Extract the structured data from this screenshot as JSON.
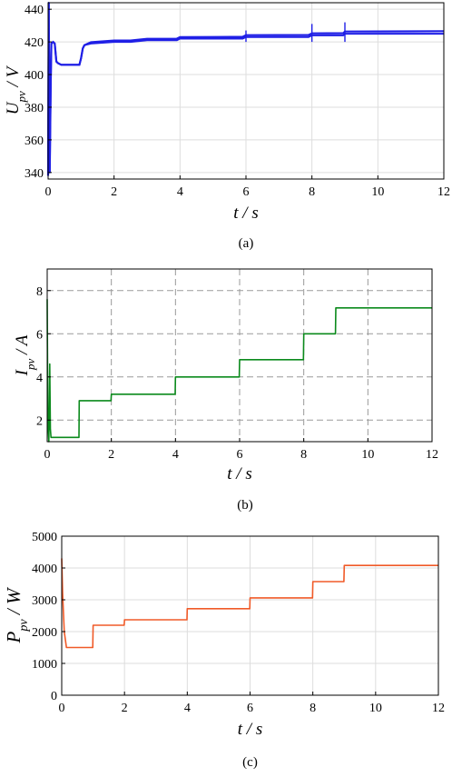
{
  "chart_data": [
    {
      "type": "line",
      "caption": "(a)",
      "xlabel": "t / s",
      "ylabel": {
        "base": "U",
        "sub": "pv",
        "rest": " / V"
      },
      "xlim": [
        0,
        12
      ],
      "ylim": [
        336,
        444
      ],
      "xticks": [
        "0",
        "2",
        "4",
        "6",
        "8",
        "10",
        "12"
      ],
      "yticks": [
        "340",
        "360",
        "380",
        "400",
        "420",
        "440"
      ],
      "grid": true,
      "grid_style": "solid",
      "color": "#1f1fe6",
      "series": [
        {
          "x": [
            0,
            0.02,
            0.05,
            0.08,
            0.1,
            0.15,
            0.2,
            0.25,
            0.3,
            0.4,
            0.6,
            0.8,
            0.95,
            1.0,
            1.05,
            1.1,
            1.3,
            2.0,
            2.5,
            3.0,
            3.9,
            4.0,
            5.0,
            5.9,
            6.0,
            7.0,
            7.9,
            8.0,
            8.5,
            8.95,
            9.0,
            10.0,
            11.0,
            12.0
          ],
          "y": [
            338,
            444,
            340,
            395,
            419,
            420,
            419,
            408,
            407,
            406,
            406,
            406,
            406,
            410,
            416,
            418,
            419,
            420,
            420,
            421,
            421,
            422,
            422,
            422,
            423,
            423,
            423,
            424,
            424,
            424,
            425,
            425,
            425,
            425
          ]
        }
      ]
    },
    {
      "type": "line",
      "caption": "(b)",
      "xlabel": "t / s",
      "ylabel": {
        "base": "I",
        "sub": "pv",
        "rest": " / A"
      },
      "xlim": [
        0,
        12
      ],
      "ylim": [
        1,
        9
      ],
      "xticks": [
        "0",
        "2",
        "4",
        "6",
        "8",
        "10",
        "12"
      ],
      "yticks": [
        "2",
        "4",
        "6",
        "8"
      ],
      "grid": true,
      "grid_style": "dashed",
      "color": "#0b8a1c",
      "series": [
        {
          "x": [
            0,
            0.02,
            0.05,
            0.08,
            0.1,
            0.12,
            0.2,
            0.5,
            0.99,
            1.0,
            1.99,
            2.0,
            3.99,
            4.0,
            5.99,
            6.0,
            7.99,
            8.0,
            8.99,
            9.0,
            10.0,
            12.0
          ],
          "y": [
            7.6,
            2.0,
            1.0,
            4.6,
            1.6,
            1.2,
            1.2,
            1.2,
            1.2,
            2.9,
            2.9,
            3.2,
            3.2,
            4.0,
            4.0,
            4.8,
            4.8,
            6.0,
            6.0,
            7.2,
            7.2,
            7.2
          ]
        }
      ]
    },
    {
      "type": "line",
      "caption": "(c)",
      "xlabel": "t / s",
      "ylabel": {
        "base": "P",
        "sub": "pv",
        "rest": " / W"
      },
      "xlim": [
        0,
        12
      ],
      "ylim": [
        0,
        5000
      ],
      "xticks": [
        "0",
        "2",
        "4",
        "6",
        "8",
        "10",
        "12"
      ],
      "yticks": [
        "0",
        "1000",
        "2000",
        "3000",
        "4000",
        "5000"
      ],
      "grid": true,
      "grid_style": "solid",
      "color": "#f05a28",
      "series": [
        {
          "x": [
            0,
            0.03,
            0.08,
            0.15,
            0.25,
            0.5,
            0.99,
            1.0,
            1.99,
            2.0,
            3.99,
            4.0,
            5.99,
            6.0,
            7.99,
            8.0,
            8.99,
            9.0,
            10.0,
            12.0
          ],
          "y": [
            4300,
            3200,
            2000,
            1500,
            1500,
            1500,
            1500,
            2200,
            2200,
            2370,
            2370,
            2720,
            2720,
            3060,
            3060,
            3570,
            3570,
            4080,
            4080,
            4080
          ]
        }
      ]
    }
  ]
}
